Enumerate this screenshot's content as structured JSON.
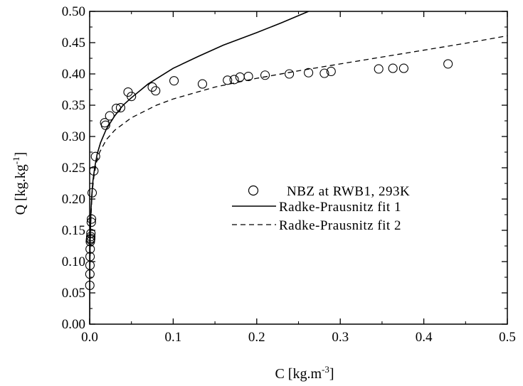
{
  "chart_data": {
    "type": "scatter",
    "xlabel": "C [kg.m",
    "xlabel_sup": "-3",
    "xlabel_end": "]",
    "ylabel": "Q [kg.kg",
    "ylabel_sup": "-1",
    "ylabel_end": "]",
    "xlim": [
      0.0,
      0.5
    ],
    "ylim": [
      0.0,
      0.5
    ],
    "grid": false,
    "legend_position": "center-right",
    "x_ticks": [
      0.0,
      0.1,
      0.2,
      0.3,
      0.4,
      0.5
    ],
    "x_tick_labels": [
      "0.0",
      "0.1",
      "0.2",
      "0.3",
      "0.4",
      "0.5"
    ],
    "y_ticks": [
      0.0,
      0.05,
      0.1,
      0.15,
      0.2,
      0.25,
      0.3,
      0.35,
      0.4,
      0.45,
      0.5
    ],
    "y_tick_labels": [
      "0.00",
      "0.05",
      "0.10",
      "0.15",
      "0.20",
      "0.25",
      "0.30",
      "0.35",
      "0.40",
      "0.45",
      "0.50"
    ],
    "series": [
      {
        "name": "NBZ at RWB1, 293K",
        "style": "open-circle",
        "color": "#000000",
        "points": [
          [
            0.0002,
            0.062
          ],
          [
            0.0003,
            0.08
          ],
          [
            0.0004,
            0.094
          ],
          [
            0.0005,
            0.108
          ],
          [
            0.0006,
            0.12
          ],
          [
            0.0008,
            0.132
          ],
          [
            0.001,
            0.135
          ],
          [
            0.0012,
            0.137
          ],
          [
            0.0013,
            0.14
          ],
          [
            0.0015,
            0.145
          ],
          [
            0.002,
            0.163
          ],
          [
            0.0022,
            0.168
          ],
          [
            0.003,
            0.21
          ],
          [
            0.005,
            0.245
          ],
          [
            0.007,
            0.268
          ],
          [
            0.018,
            0.322
          ],
          [
            0.019,
            0.318
          ],
          [
            0.024,
            0.333
          ],
          [
            0.032,
            0.345
          ],
          [
            0.037,
            0.346
          ],
          [
            0.046,
            0.371
          ],
          [
            0.05,
            0.364
          ],
          [
            0.075,
            0.379
          ],
          [
            0.079,
            0.373
          ],
          [
            0.101,
            0.389
          ],
          [
            0.135,
            0.384
          ],
          [
            0.165,
            0.39
          ],
          [
            0.173,
            0.391
          ],
          [
            0.18,
            0.395
          ],
          [
            0.19,
            0.396
          ],
          [
            0.21,
            0.398
          ],
          [
            0.239,
            0.4
          ],
          [
            0.262,
            0.402
          ],
          [
            0.281,
            0.401
          ],
          [
            0.289,
            0.404
          ],
          [
            0.346,
            0.408
          ],
          [
            0.363,
            0.409
          ],
          [
            0.376,
            0.409
          ],
          [
            0.429,
            0.416
          ]
        ]
      },
      {
        "name": "Radke-Prausnitz fit 1",
        "style": "solid-line",
        "color": "#000000",
        "points": [
          [
            0.0,
            0.0
          ],
          [
            0.0001,
            0.06
          ],
          [
            0.0003,
            0.1
          ],
          [
            0.0007,
            0.14
          ],
          [
            0.0015,
            0.18
          ],
          [
            0.0025,
            0.205
          ],
          [
            0.004,
            0.23
          ],
          [
            0.006,
            0.25
          ],
          [
            0.009,
            0.272
          ],
          [
            0.013,
            0.29
          ],
          [
            0.02,
            0.312
          ],
          [
            0.03,
            0.333
          ],
          [
            0.04,
            0.35
          ],
          [
            0.05,
            0.362
          ],
          [
            0.07,
            0.384
          ],
          [
            0.1,
            0.409
          ],
          [
            0.13,
            0.428
          ],
          [
            0.16,
            0.446
          ],
          [
            0.2,
            0.466
          ],
          [
            0.23,
            0.482
          ],
          [
            0.262,
            0.5
          ]
        ]
      },
      {
        "name": "Radke-Prausnitz fit 2",
        "style": "dashed-line",
        "color": "#000000",
        "points": [
          [
            0.0,
            0.0
          ],
          [
            0.0001,
            0.05
          ],
          [
            0.0003,
            0.09
          ],
          [
            0.0007,
            0.13
          ],
          [
            0.0015,
            0.17
          ],
          [
            0.003,
            0.21
          ],
          [
            0.005,
            0.235
          ],
          [
            0.008,
            0.258
          ],
          [
            0.012,
            0.275
          ],
          [
            0.02,
            0.295
          ],
          [
            0.03,
            0.31
          ],
          [
            0.05,
            0.33
          ],
          [
            0.08,
            0.35
          ],
          [
            0.1,
            0.36
          ],
          [
            0.15,
            0.379
          ],
          [
            0.2,
            0.393
          ],
          [
            0.25,
            0.405
          ],
          [
            0.3,
            0.416
          ],
          [
            0.35,
            0.427
          ],
          [
            0.4,
            0.438
          ],
          [
            0.45,
            0.449
          ],
          [
            0.5,
            0.461
          ]
        ]
      }
    ]
  }
}
